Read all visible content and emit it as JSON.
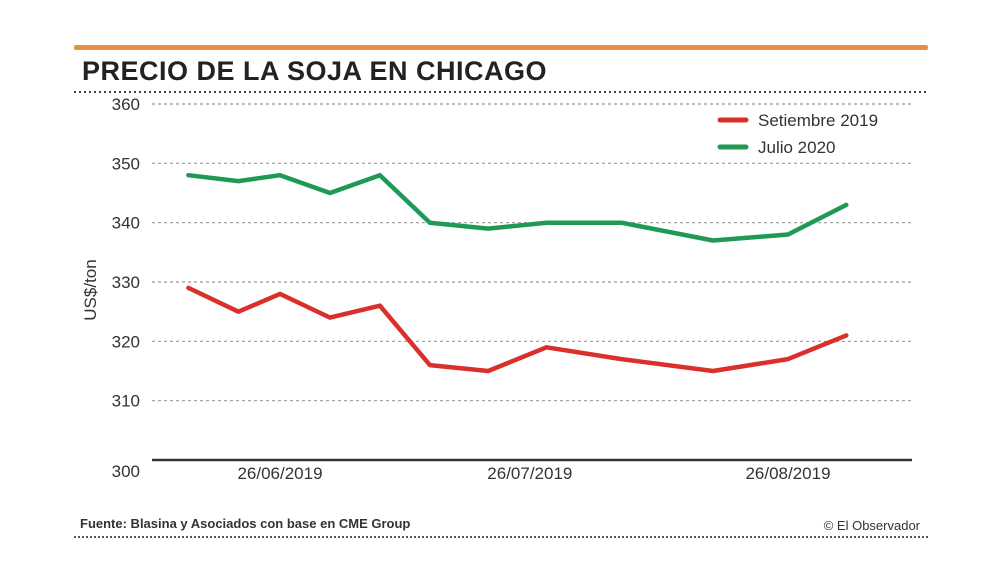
{
  "title": "PRECIO DE LA SOJA EN CHICAGO",
  "footer": {
    "source": "Fuente: Blasina y Asociados con base en CME Group",
    "credit": "© El Observador"
  },
  "colors": {
    "accent_rule": "#e8913a",
    "setiembre": "#d9302b",
    "julio": "#1f9a55"
  },
  "chart_data": {
    "type": "line",
    "ylabel": "US$/ton",
    "xlabel": "",
    "ylim": [
      300,
      360
    ],
    "yticks": [
      300,
      310,
      320,
      330,
      340,
      350,
      360
    ],
    "grid": true,
    "legend_position": "top-right",
    "x": [
      "2019-06-17",
      "2019-06-21",
      "2019-06-26",
      "2019-07-01",
      "2019-07-05",
      "2019-07-10",
      "2019-07-15",
      "2019-07-22",
      "2019-07-29",
      "2019-08-08",
      "2019-08-19",
      "2019-08-26",
      "2019-09-02"
    ],
    "x_tick_labels": [
      "26/06/2019",
      "26/07/2019",
      "26/08/2019"
    ],
    "series": [
      {
        "name": "Setiembre 2019",
        "color": "#d9302b",
        "x": [
          "2019-06-15",
          "2019-06-21",
          "2019-06-26",
          "2019-07-02",
          "2019-07-08",
          "2019-07-14",
          "2019-07-21",
          "2019-07-28",
          "2019-08-06",
          "2019-08-17",
          "2019-08-26",
          "2019-09-02"
        ],
        "values": [
          329,
          325,
          328,
          324,
          326,
          316,
          315,
          319,
          317,
          315,
          317,
          321
        ]
      },
      {
        "name": "Julio 2020",
        "color": "#1f9a55",
        "x": [
          "2019-06-15",
          "2019-06-21",
          "2019-06-26",
          "2019-07-02",
          "2019-07-08",
          "2019-07-14",
          "2019-07-21",
          "2019-07-28",
          "2019-08-06",
          "2019-08-17",
          "2019-08-26",
          "2019-09-02"
        ],
        "values": [
          348,
          347,
          348,
          345,
          348,
          340,
          339,
          340,
          340,
          337,
          338,
          343
        ]
      }
    ]
  }
}
